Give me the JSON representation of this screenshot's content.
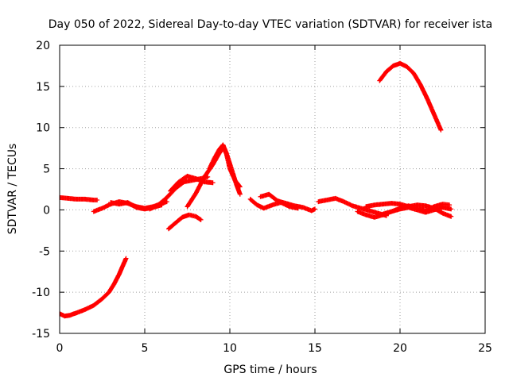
{
  "chart_data": {
    "type": "scatter",
    "title": "Day 050 of 2022, Sidereal Day-to-day VTEC variation (SDTVAR) for receiver ista",
    "xlabel": "GPS time / hours",
    "ylabel": "SDTVAR / TECUs",
    "xlim": [
      0,
      25
    ],
    "ylim": [
      -15,
      20
    ],
    "xticks": [
      "0",
      "5",
      "10",
      "15",
      "20",
      "25"
    ],
    "yticks": [
      "-15",
      "-10",
      "-5",
      "0",
      "5",
      "10",
      "15",
      "20"
    ],
    "xtick_values": [
      0,
      5,
      10,
      15,
      20,
      25
    ],
    "ytick_values": [
      -15,
      -10,
      -5,
      0,
      5,
      10,
      15,
      20
    ],
    "grid": true,
    "marker": "+",
    "color": "#ff0000",
    "series": [
      {
        "name": "arc-neg-morning",
        "x": [
          0.0,
          0.3,
          0.6,
          1.0,
          1.5,
          2.0,
          2.5,
          2.9,
          3.2,
          3.5,
          3.75,
          3.9
        ],
        "y": [
          -12.6,
          -12.9,
          -12.8,
          -12.5,
          -12.1,
          -11.6,
          -10.8,
          -10.0,
          -9.0,
          -7.8,
          -6.6,
          -5.9
        ]
      },
      {
        "name": "arc-morning-zero",
        "x": [
          0.0,
          0.5,
          1.0,
          1.5,
          2.0,
          2.2
        ],
        "y": [
          1.5,
          1.4,
          1.3,
          1.3,
          1.2,
          1.2
        ]
      },
      {
        "name": "arc-zero-a",
        "x": [
          2.0,
          2.5,
          3.0,
          3.5,
          4.0,
          4.5,
          5.0,
          5.5,
          6.0,
          6.3
        ],
        "y": [
          -0.2,
          0.2,
          0.7,
          1.0,
          0.8,
          0.4,
          0.2,
          0.4,
          0.8,
          1.0
        ]
      },
      {
        "name": "arc-zero-b",
        "x": [
          3.0,
          3.5,
          4.0,
          4.5,
          5.0,
          5.5,
          6.0
        ],
        "y": [
          0.9,
          0.7,
          0.9,
          0.3,
          0.1,
          0.3,
          0.6
        ]
      },
      {
        "name": "arc-rise-a",
        "x": [
          5.3,
          5.8,
          6.3,
          6.8,
          7.3,
          7.8,
          8.3,
          8.7
        ],
        "y": [
          0.1,
          0.6,
          1.5,
          2.6,
          3.4,
          3.6,
          3.8,
          4.0
        ]
      },
      {
        "name": "arc-rise-b",
        "x": [
          6.5,
          7.0,
          7.5,
          8.0,
          8.5,
          9.0
        ],
        "y": [
          2.3,
          3.4,
          4.1,
          3.8,
          3.4,
          3.3
        ]
      },
      {
        "name": "arc-rise-c",
        "x": [
          7.5,
          8.0,
          8.5,
          9.0,
          9.3,
          9.6,
          9.8,
          10.0,
          10.3,
          10.6
        ],
        "y": [
          0.4,
          2.0,
          4.0,
          5.5,
          6.6,
          7.6,
          6.8,
          5.0,
          3.6,
          2.8
        ]
      },
      {
        "name": "arc-peak",
        "x": [
          8.8,
          9.1,
          9.4,
          9.6,
          9.8,
          10.0,
          10.2,
          10.4,
          10.6
        ],
        "y": [
          5.0,
          6.3,
          7.4,
          7.9,
          6.9,
          5.6,
          4.3,
          3.0,
          1.9
        ]
      },
      {
        "name": "arc-small-neg",
        "x": [
          6.4,
          6.8,
          7.2,
          7.6,
          8.0,
          8.3
        ],
        "y": [
          -2.3,
          -1.6,
          -0.9,
          -0.6,
          -0.8,
          -1.2
        ]
      },
      {
        "name": "arc-mid-a",
        "x": [
          11.2,
          11.6,
          12.0,
          12.5,
          13.0,
          13.5,
          14.0
        ],
        "y": [
          1.3,
          0.6,
          0.2,
          0.6,
          0.9,
          0.4,
          0.2
        ]
      },
      {
        "name": "arc-mid-b",
        "x": [
          11.8,
          12.3,
          12.8,
          13.3,
          13.8,
          14.3,
          14.8,
          15.0
        ],
        "y": [
          1.6,
          1.9,
          1.1,
          0.8,
          0.5,
          0.3,
          -0.1,
          0.1
        ]
      },
      {
        "name": "arc-mid-c",
        "x": [
          15.2,
          15.7,
          16.2,
          16.7,
          17.2,
          17.7,
          18.2,
          18.7,
          19.2
        ],
        "y": [
          1.0,
          1.2,
          1.4,
          1.0,
          0.5,
          0.2,
          -0.1,
          -0.4,
          -0.7
        ]
      },
      {
        "name": "arc-evening-a",
        "x": [
          17.5,
          18.0,
          18.5,
          19.0,
          19.5,
          20.0,
          20.5,
          21.0,
          21.5,
          22.0,
          22.5,
          23.0
        ],
        "y": [
          -0.2,
          -0.6,
          -0.9,
          -0.6,
          -0.2,
          0.1,
          0.3,
          0.0,
          -0.3,
          0.0,
          0.3,
          0.1
        ]
      },
      {
        "name": "arc-evening-b",
        "x": [
          18.0,
          18.5,
          19.0,
          19.5,
          20.0,
          20.5,
          21.0,
          21.5,
          22.0,
          22.5,
          23.0
        ],
        "y": [
          0.4,
          0.6,
          0.7,
          0.8,
          0.7,
          0.4,
          0.6,
          0.5,
          0.2,
          -0.4,
          -0.8
        ]
      },
      {
        "name": "arc-evening-c",
        "x": [
          19.0,
          19.5,
          20.0,
          20.5,
          21.0,
          21.5,
          22.0,
          22.5,
          22.9
        ],
        "y": [
          -0.5,
          -0.2,
          0.2,
          0.5,
          0.2,
          -0.1,
          0.4,
          0.7,
          0.6
        ]
      },
      {
        "name": "arc-evening-peak",
        "x": [
          18.8,
          19.2,
          19.6,
          20.0,
          20.4,
          20.8,
          21.2,
          21.6,
          22.0,
          22.4
        ],
        "y": [
          15.7,
          16.8,
          17.5,
          17.8,
          17.4,
          16.6,
          15.2,
          13.5,
          11.6,
          9.7
        ]
      }
    ]
  }
}
